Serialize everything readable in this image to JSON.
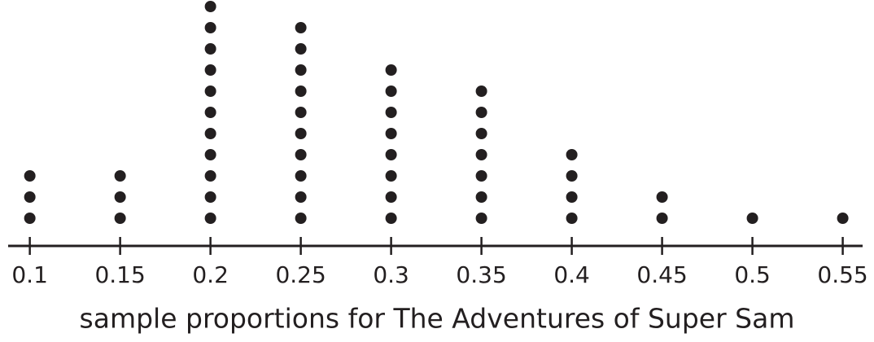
{
  "chart_data": {
    "type": "dot",
    "x_label": "sample proportions for The Adventures of Super Sam",
    "x": [
      0.1,
      0.15,
      0.2,
      0.25,
      0.3,
      0.35,
      0.4,
      0.45,
      0.5,
      0.55
    ],
    "values": [
      3,
      3,
      11,
      10,
      8,
      7,
      4,
      2,
      1,
      1
    ],
    "color": "#231f20",
    "xlim": [
      0.088,
      0.561
    ],
    "xticks": [
      0.1,
      0.15,
      0.2,
      0.25,
      0.3,
      0.35,
      0.4,
      0.45,
      0.5,
      0.55
    ]
  }
}
